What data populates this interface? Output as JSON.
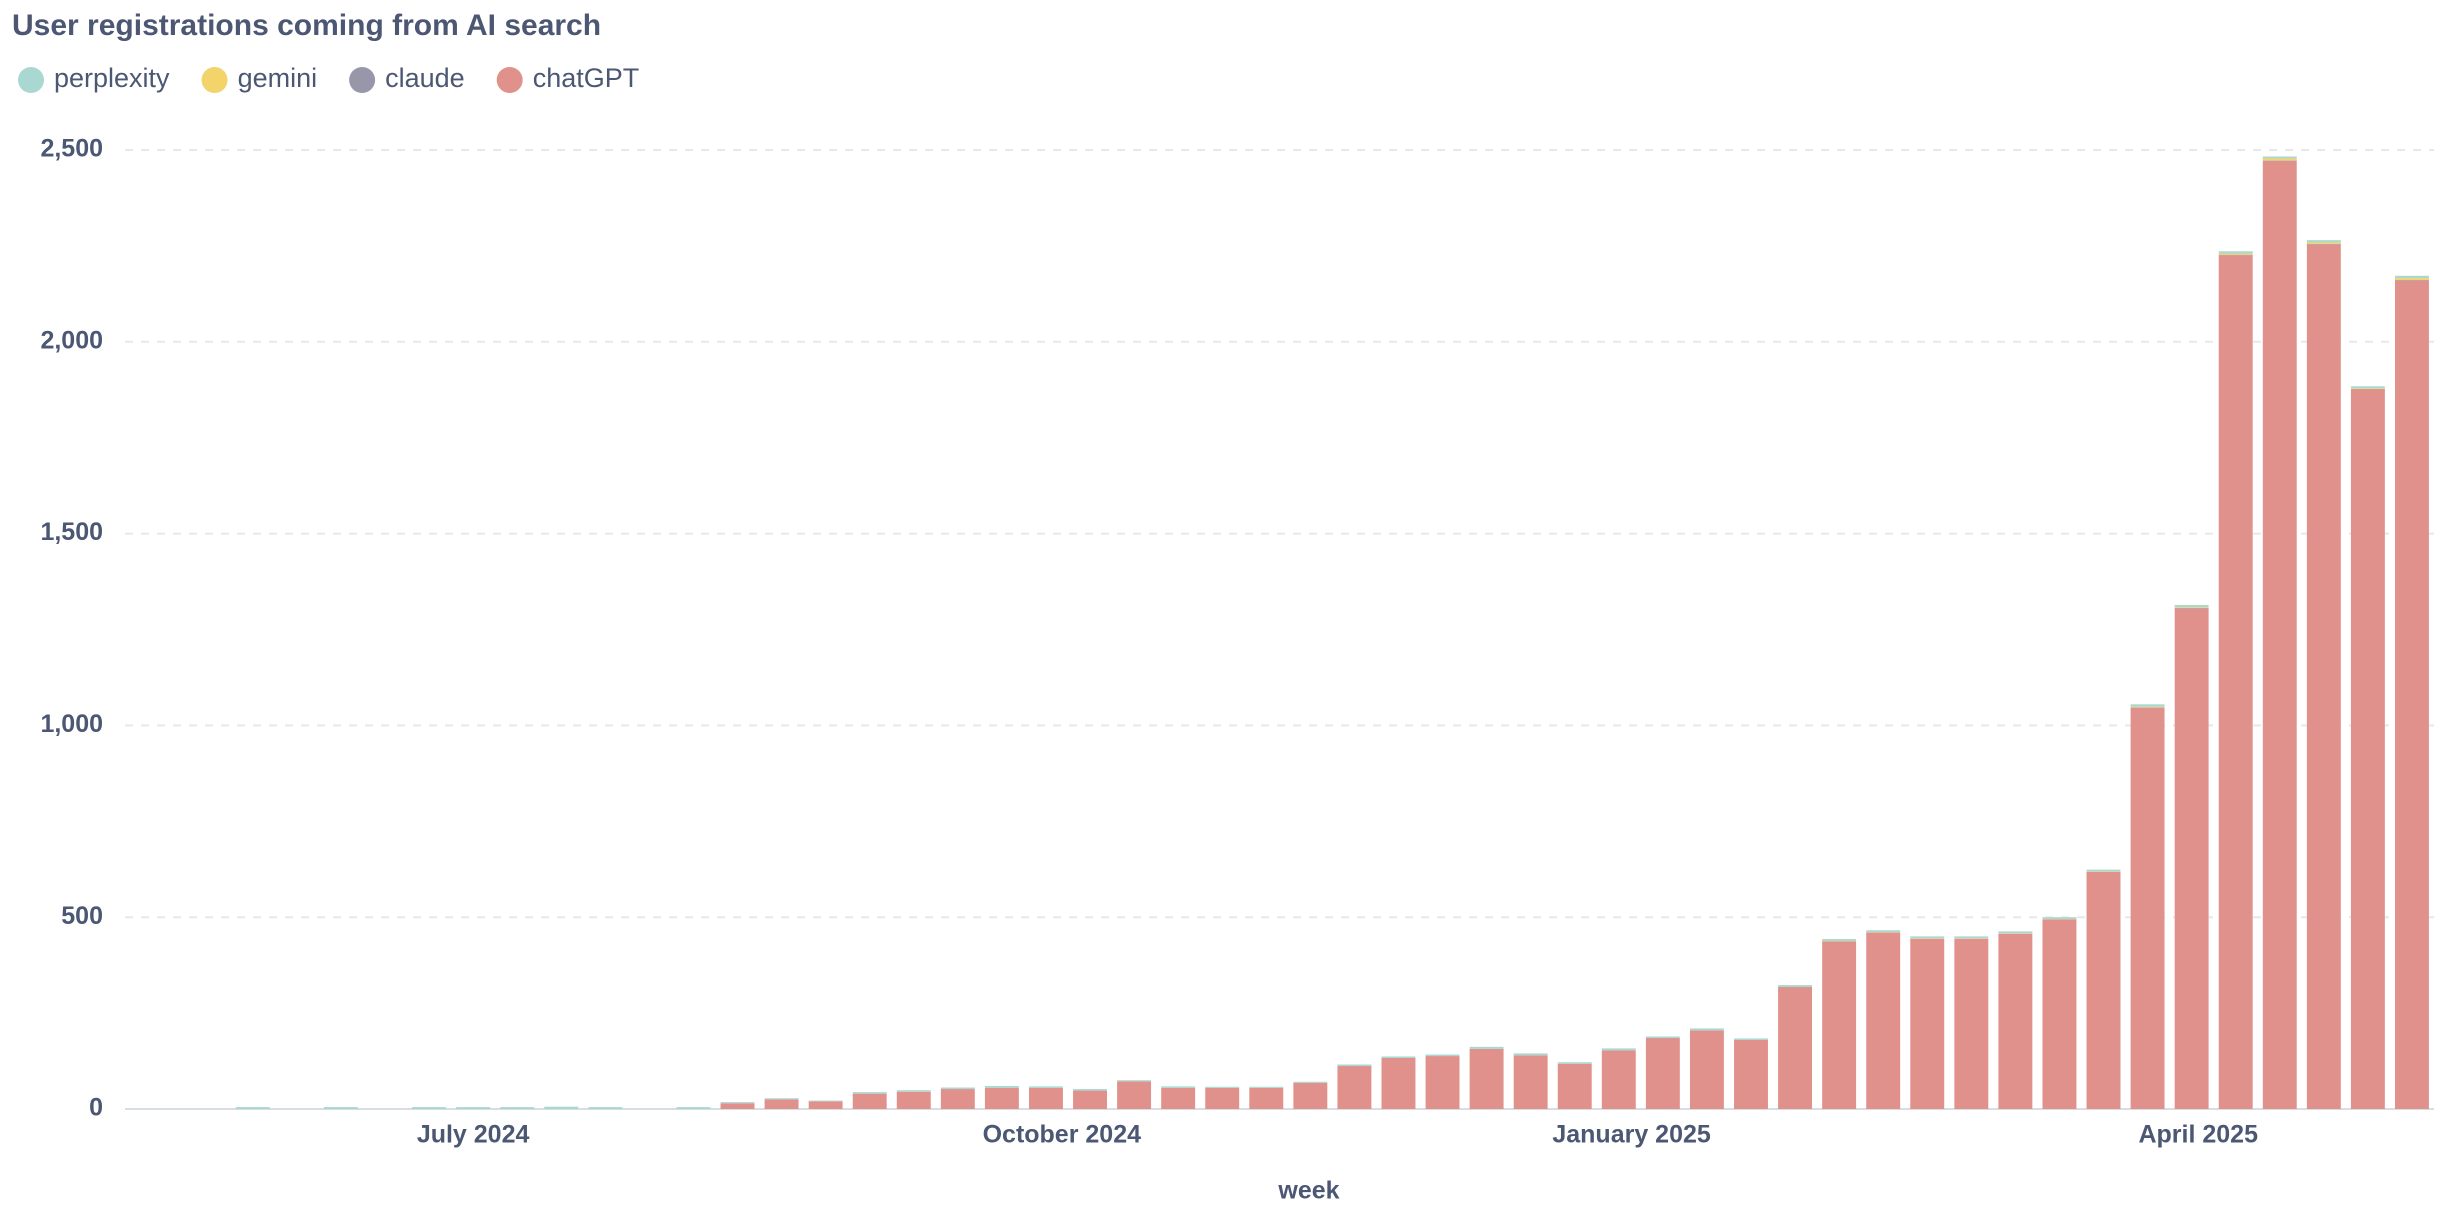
{
  "chart_data": {
    "type": "stacked-bar",
    "title": "User registrations coming from AI search",
    "x_label": "week",
    "x": [
      0,
      1,
      2,
      3,
      4,
      5,
      6,
      7,
      8,
      9,
      10,
      11,
      12,
      13,
      14,
      15,
      16,
      17,
      18,
      19,
      20,
      21,
      22,
      23,
      24,
      25,
      26,
      27,
      28,
      29,
      30,
      31,
      32,
      33,
      34,
      35,
      36,
      37,
      38,
      39,
      40,
      41,
      42,
      43,
      44,
      45,
      46,
      47,
      48,
      49
    ],
    "xlim": [
      -2.9,
      49.5
    ],
    "xticks": [
      {
        "value": 5,
        "label": "July 2024"
      },
      {
        "value": 18.36,
        "label": "October 2024"
      },
      {
        "value": 31.29,
        "label": "January 2025"
      },
      {
        "value": 44.15,
        "label": "April 2025"
      }
    ],
    "ylim": [
      0,
      2500
    ],
    "yticks": [
      0,
      {
        "value": 500,
        "label": "500"
      },
      {
        "value": 1000,
        "label": "1,000"
      },
      {
        "value": 1500,
        "label": "1,500"
      },
      {
        "value": 2000,
        "label": "2,000"
      },
      {
        "value": 2500,
        "label": "2,500"
      }
    ],
    "grid": true,
    "series": [
      {
        "name": "perplexity",
        "color": "#a9d8d2",
        "values": [
          5,
          0,
          5,
          0,
          5,
          5,
          5,
          6,
          5,
          0,
          5,
          3,
          3,
          2,
          4,
          4,
          4,
          5,
          4,
          4,
          3,
          4,
          3,
          3,
          3,
          4,
          4,
          4,
          5,
          5,
          4,
          5,
          4,
          5,
          4,
          5,
          5,
          5,
          5,
          5,
          5,
          5,
          5,
          6,
          6,
          6,
          5,
          6,
          5,
          6
        ]
      },
      {
        "name": "gemini",
        "color": "#f2d46b",
        "values": [
          0,
          0,
          0,
          0,
          0,
          0,
          0,
          0,
          0,
          0,
          0,
          0,
          0,
          0,
          0,
          0,
          0,
          0,
          0,
          0,
          0,
          0,
          0,
          0,
          0,
          0,
          0,
          0,
          0,
          0,
          0,
          0,
          0,
          0,
          0,
          0,
          1,
          1,
          1,
          1,
          1,
          1,
          1,
          2,
          2,
          3,
          5,
          4,
          2,
          5
        ]
      },
      {
        "name": "claude",
        "color": "#9897a9",
        "values": [
          0,
          0,
          0,
          0,
          0,
          0,
          0,
          0,
          0,
          0,
          0,
          0,
          0,
          0,
          0,
          0,
          0,
          0,
          0,
          0,
          0,
          0,
          0,
          0,
          0,
          0,
          0,
          0,
          0,
          0,
          0,
          0,
          0,
          0,
          0,
          0,
          0,
          0,
          0,
          0,
          0,
          0,
          0,
          1,
          1,
          1,
          1,
          1,
          1,
          1
        ]
      },
      {
        "name": "chatGPT",
        "color": "#e0918b",
        "values": [
          0,
          0,
          0,
          0,
          0,
          0,
          0,
          0,
          0,
          0,
          0,
          15,
          25,
          20,
          40,
          45,
          52,
          55,
          55,
          48,
          72,
          55,
          55,
          55,
          68,
          112,
          133,
          138,
          157,
          140,
          118,
          153,
          185,
          205,
          180,
          318,
          437,
          460,
          444,
          444,
          457,
          494,
          618,
          1046,
          1305,
          2226,
          2472,
          2254,
          1876,
          2160
        ]
      }
    ]
  }
}
